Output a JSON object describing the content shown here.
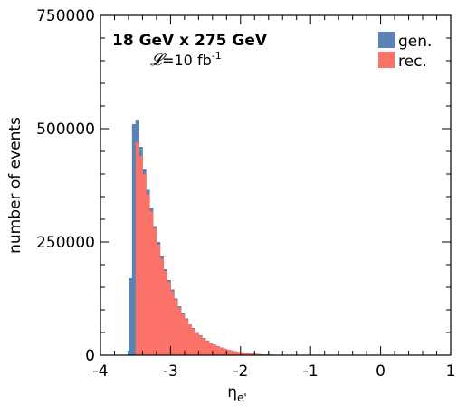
{
  "chart_data": {
    "type": "bar",
    "subtype": "histogram",
    "annotation": {
      "line1": "18 GeV x 275 GeV",
      "lumi_symbol": "𝓛",
      "lumi_text": "=10 fb",
      "lumi_exp": "-1"
    },
    "xlabel": "η",
    "xlabel_sub": "e'",
    "ylabel": "number of events",
    "xlim": [
      -4,
      1
    ],
    "ylim": [
      0,
      750000
    ],
    "xticks": [
      -4,
      -3,
      -2,
      -1,
      0,
      1
    ],
    "xtick_labels": [
      "-4",
      "-3",
      "-2",
      "-1",
      "0",
      "1"
    ],
    "yticks": [
      0,
      250000,
      500000,
      750000
    ],
    "ytick_labels": [
      "0",
      "250000",
      "500000",
      "750000"
    ],
    "bin_edges_start": -3.6,
    "bin_width": 0.05,
    "legend": {
      "position": "top-right"
    },
    "series": [
      {
        "name": "gen.",
        "color": "#5b82b4",
        "values": [
          170000,
          510000,
          520000,
          460000,
          410000,
          365000,
          325000,
          285000,
          250000,
          218000,
          190000,
          166000,
          145000,
          125000,
          108000,
          94000,
          81000,
          70000,
          60000,
          51000,
          44000,
          38000,
          32500,
          27500,
          23500,
          20000,
          17000,
          14500,
          12300,
          10400,
          8800,
          7400,
          6200,
          5200,
          4300,
          3600,
          3000,
          2500,
          2000,
          1700,
          1400,
          1100,
          900,
          750,
          600,
          500,
          400,
          320,
          260,
          210,
          170,
          140,
          110,
          90,
          70,
          55,
          45,
          35,
          28,
          22,
          17,
          13,
          10,
          8,
          6,
          5,
          4,
          3,
          2,
          2,
          1,
          1
        ]
      },
      {
        "name": "rec.",
        "color": "#fa7268",
        "values": [
          0,
          0,
          470000,
          440000,
          400000,
          355000,
          318000,
          280000,
          244000,
          213000,
          186000,
          162000,
          141000,
          122000,
          105000,
          91000,
          79000,
          68000,
          58000,
          50000,
          43000,
          37000,
          31500,
          26800,
          22800,
          19400,
          16500,
          14100,
          12000,
          10100,
          8500,
          7200,
          6000,
          5000,
          4200,
          3500,
          2900,
          2400,
          1950,
          1650,
          1350,
          1080,
          880,
          720,
          580,
          480,
          390,
          310,
          250,
          200,
          160,
          130,
          105,
          85,
          68,
          52,
          42,
          33,
          26,
          20,
          16,
          12,
          9,
          7,
          5,
          4,
          3,
          3,
          2,
          1,
          1,
          1
        ]
      }
    ]
  }
}
